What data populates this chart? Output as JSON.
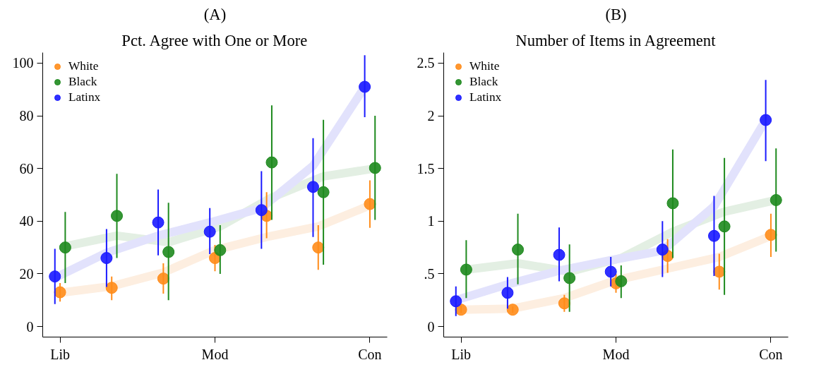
{
  "chart_data": [
    {
      "type": "scatter",
      "title": "(A)",
      "subtitle": "Pct. Agree with One or More",
      "categories": [
        "Lib",
        null,
        null,
        "Mod",
        null,
        null,
        "Con"
      ],
      "ylim": [
        -4,
        104
      ],
      "yticks": [
        0,
        20,
        40,
        60,
        80,
        100
      ],
      "legend": "top left",
      "marker": "circle",
      "grid": false,
      "series": [
        {
          "type": "line",
          "marker": "none",
          "color": "#fdeee0",
          "values": [
            12.8,
            15.3,
            20.5,
            29,
            34,
            38,
            46
          ]
        },
        {
          "type": "line",
          "marker": "none",
          "color": "#e3efe3",
          "values": [
            30.5,
            34.5,
            32,
            38,
            49,
            57,
            60
          ]
        },
        {
          "type": "line",
          "marker": "none",
          "color": "#e2e2fc",
          "values": [
            18.5,
            28,
            34.5,
            39.5,
            45,
            61,
            91
          ]
        },
        {
          "name": "White",
          "color": "#ff8c1a",
          "values": [
            13,
            14.7,
            18.2,
            26,
            42,
            30,
            46.5
          ],
          "errors": [
            [
              9.5,
              16.5
            ],
            [
              10,
              19
            ],
            [
              12.5,
              24
            ],
            [
              21,
              31
            ],
            [
              33.5,
              51
            ],
            [
              21.5,
              38.5
            ],
            [
              37.5,
              55.5
            ]
          ]
        },
        {
          "name": "Black",
          "color": "#1e8a1e",
          "values": [
            30,
            42,
            28.3,
            29,
            62.3,
            51,
            60.2
          ],
          "errors": [
            [
              16.5,
              43.5
            ],
            [
              26,
              58
            ],
            [
              10,
              47
            ],
            [
              20,
              38.5
            ],
            [
              40.5,
              84
            ],
            [
              23.5,
              78.5
            ],
            [
              40.5,
              80
            ]
          ]
        },
        {
          "name": "Latinx",
          "color": "#1a1aff",
          "values": [
            19,
            26,
            39.5,
            36,
            44.2,
            53,
            91
          ],
          "errors": [
            [
              8.5,
              29.5
            ],
            [
              15,
              37
            ],
            [
              27,
              52
            ],
            [
              27.5,
              45
            ],
            [
              29.5,
              59
            ],
            [
              34,
              71.5
            ],
            [
              79.5,
              103
            ]
          ]
        }
      ]
    },
    {
      "type": "scatter",
      "title": "(B)",
      "subtitle": "Number of Items in Agreement",
      "categories": [
        "Lib",
        null,
        null,
        "Mod",
        null,
        null,
        "Con"
      ],
      "ylim": [
        -0.1,
        2.6
      ],
      "yticks": [
        0,
        {
          "value": 0.5,
          "label": ".5"
        },
        1,
        1.5,
        2,
        2.5
      ],
      "legend": "top left",
      "marker": "circle",
      "grid": false,
      "series": [
        {
          "type": "line",
          "marker": "none",
          "color": "#fdeee0",
          "values": [
            0.16,
            0.17,
            0.27,
            0.44,
            0.55,
            0.66,
            0.86
          ]
        },
        {
          "type": "line",
          "marker": "none",
          "color": "#e3efe3",
          "values": [
            0.54,
            0.6,
            0.52,
            0.65,
            0.9,
            1.09,
            1.2
          ]
        },
        {
          "type": "line",
          "marker": "none",
          "color": "#e2e2fc",
          "values": [
            0.25,
            0.4,
            0.53,
            0.63,
            0.72,
            1.14,
            1.96
          ]
        },
        {
          "name": "White",
          "color": "#ff8c1a",
          "values": [
            0.16,
            0.16,
            0.22,
            0.41,
            0.67,
            0.52,
            0.87
          ],
          "errors": [
            [
              0.13,
              0.2
            ],
            [
              0.13,
              0.19
            ],
            [
              0.14,
              0.3
            ],
            [
              0.32,
              0.5
            ],
            [
              0.51,
              0.83
            ],
            [
              0.35,
              0.69
            ],
            [
              0.66,
              1.07
            ]
          ]
        },
        {
          "name": "Black",
          "color": "#1e8a1e",
          "values": [
            0.54,
            0.73,
            0.46,
            0.43,
            1.17,
            0.95,
            1.2
          ],
          "errors": [
            [
              0.27,
              0.82
            ],
            [
              0.4,
              1.07
            ],
            [
              0.14,
              0.78
            ],
            [
              0.27,
              0.58
            ],
            [
              0.65,
              1.68
            ],
            [
              0.3,
              1.6
            ],
            [
              0.71,
              1.69
            ]
          ]
        },
        {
          "name": "Latinx",
          "color": "#1a1aff",
          "values": [
            0.24,
            0.32,
            0.68,
            0.52,
            0.73,
            0.86,
            1.96
          ],
          "errors": [
            [
              0.1,
              0.38
            ],
            [
              0.17,
              0.47
            ],
            [
              0.43,
              0.94
            ],
            [
              0.38,
              0.66
            ],
            [
              0.47,
              1.0
            ],
            [
              0.48,
              1.24
            ],
            [
              1.57,
              2.34
            ]
          ]
        }
      ]
    }
  ]
}
